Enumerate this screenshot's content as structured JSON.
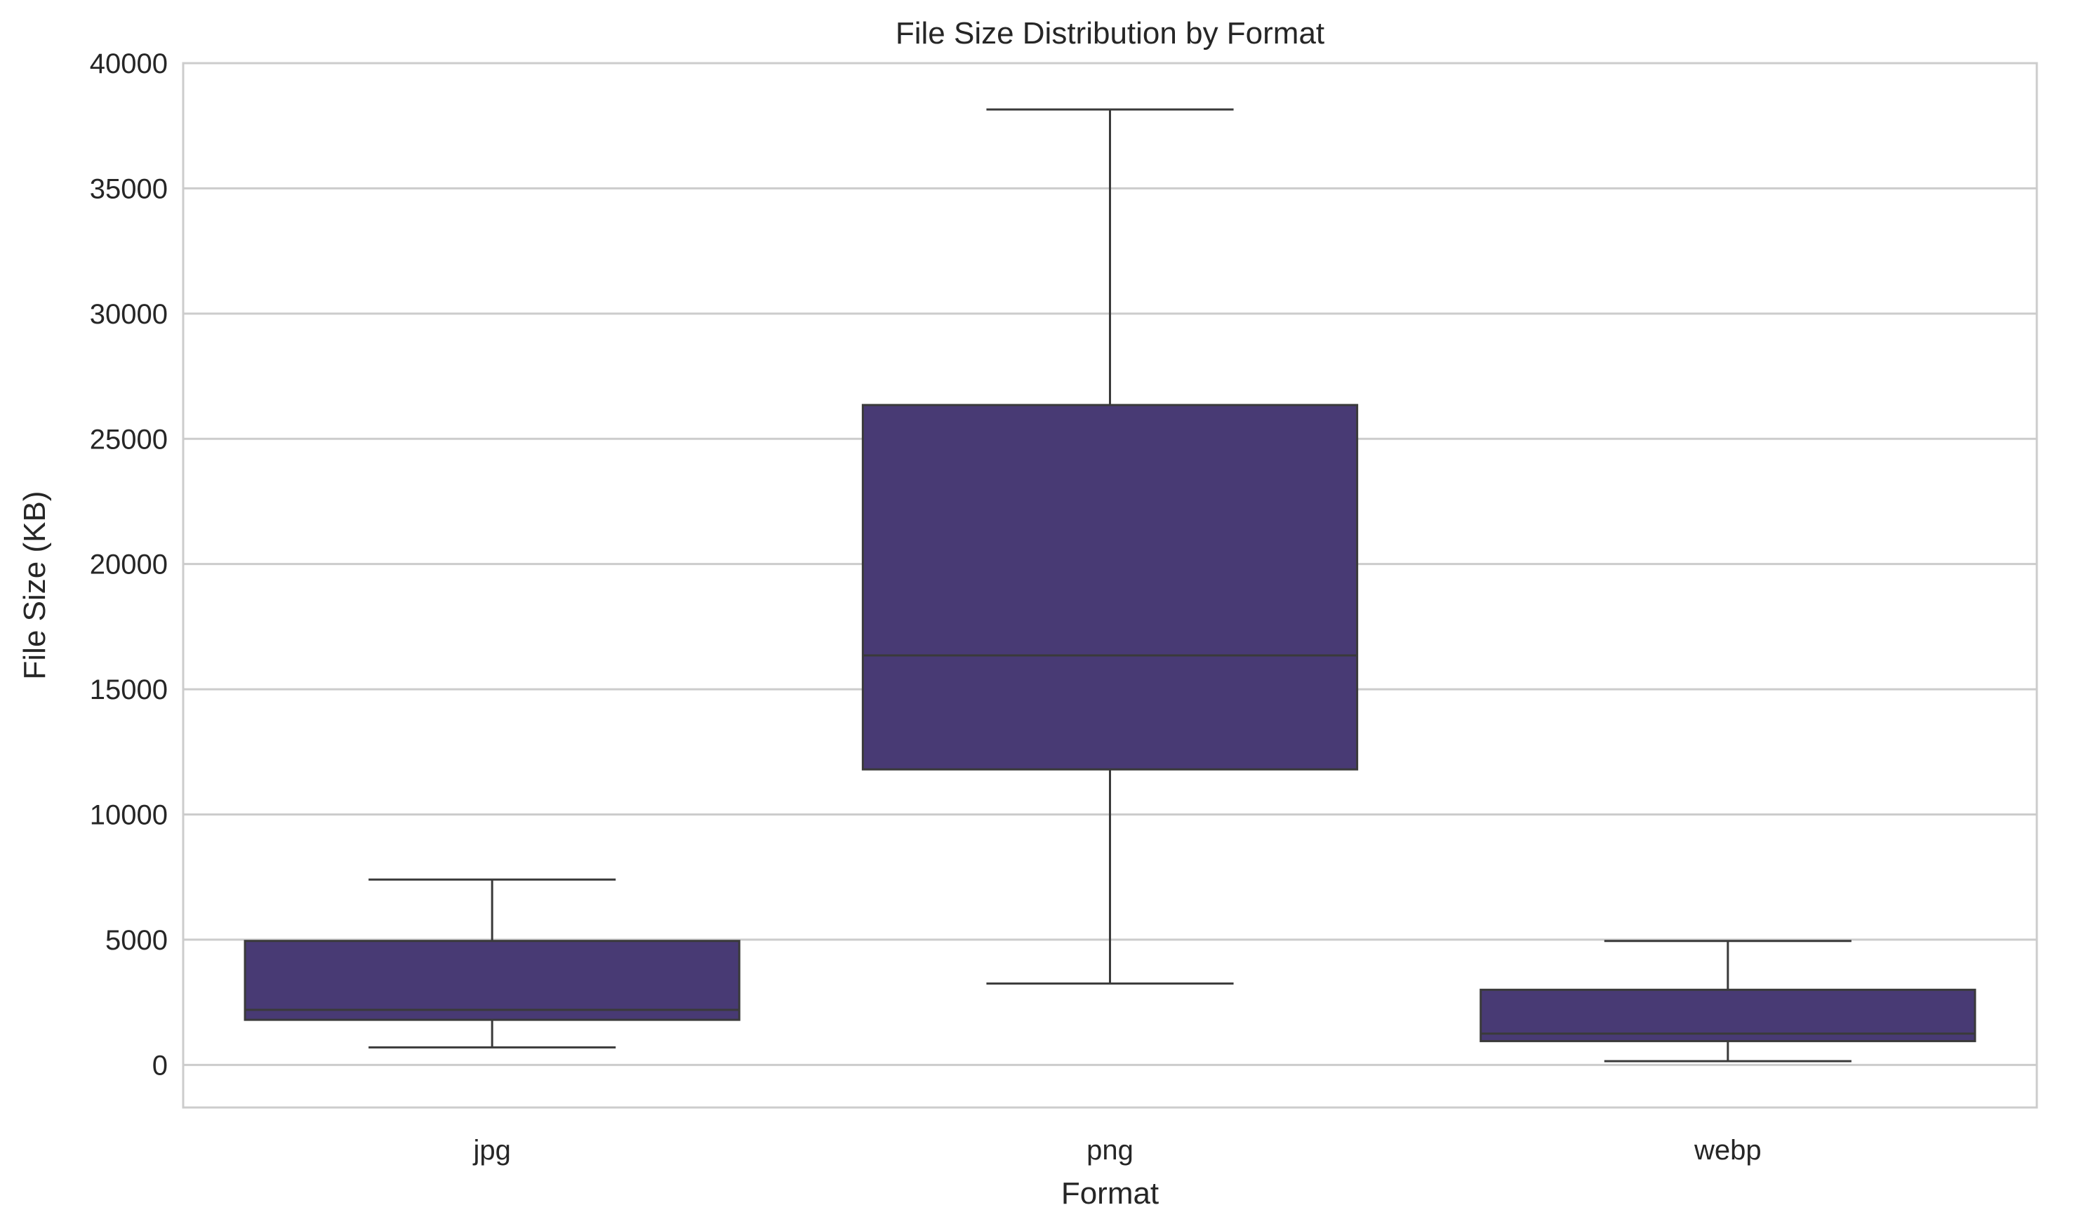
{
  "chart_data": {
    "type": "box",
    "title": "File Size Distribution by Format",
    "xlabel": "Format",
    "ylabel": "File Size (KB)",
    "categories": [
      "jpg",
      "png",
      "webp"
    ],
    "boxes": [
      {
        "category": "jpg",
        "whisker_low": 700,
        "q1": 1800,
        "median": 2200,
        "q3": 4950,
        "whisker_high": 7400
      },
      {
        "category": "png",
        "whisker_low": 3250,
        "q1": 11800,
        "median": 16350,
        "q3": 26350,
        "whisker_high": 38150
      },
      {
        "category": "webp",
        "whisker_low": 150,
        "q1": 950,
        "median": 1250,
        "q3": 3000,
        "whisker_high": 4950
      }
    ],
    "ylim": [
      -1700,
      40000
    ],
    "yticks": [
      0,
      5000,
      10000,
      15000,
      20000,
      25000,
      30000,
      35000,
      40000
    ],
    "grid": "horizontal",
    "colors": {
      "box_fill": "#483a74",
      "line": "#3a3a3a",
      "grid": "#cccccc",
      "frame": "#cccccc"
    }
  }
}
